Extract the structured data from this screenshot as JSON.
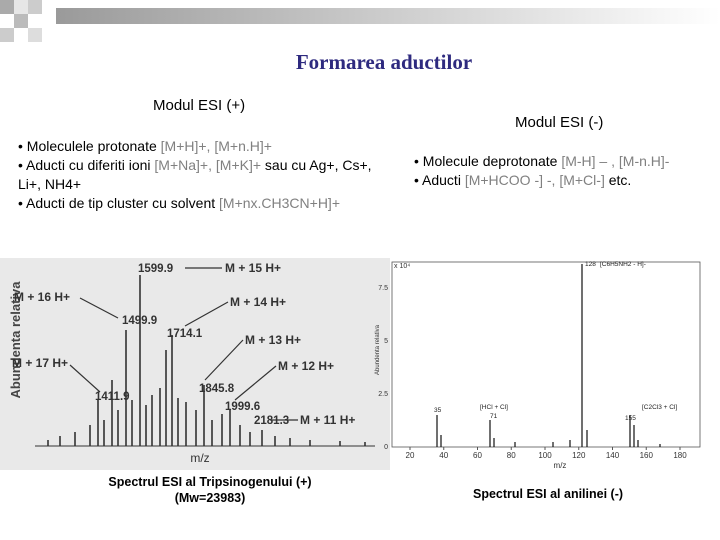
{
  "header": {
    "title": "Formarea aductilor"
  },
  "left": {
    "heading": "Modul ESI (+)",
    "bullets": [
      [
        {
          "text": "• Moleculele protonate ",
          "color": "#000000"
        },
        {
          "text": "[M+H]+, [M+n.H]+",
          "color": "#808080"
        }
      ],
      [
        {
          "text": "• Aducti cu diferiti ioni ",
          "color": "#000000"
        },
        {
          "text": "[M+Na]+, [M+K]+",
          "color": "#808080"
        },
        {
          "text": " sau cu Ag+, Cs+, Li+, NH4+",
          "color": "#000000"
        }
      ],
      [
        {
          "text": "• Aducti de tip cluster cu solvent ",
          "color": "#000000"
        },
        {
          "text": "[M+nx.CH3CN+H]+",
          "color": "#808080"
        }
      ]
    ],
    "spectrum": {
      "y_label": "Abundenta relativa",
      "x_label": "m/z",
      "ion_labels": [
        "M + 15 H+",
        "M + 16 H+",
        "M + 14 H+",
        "M + 13 H+",
        "M + 17 H+",
        "M + 12 H+",
        "M + 11 H+"
      ],
      "peak_labels": [
        "1599.9",
        "1499.9",
        "1714.1",
        "1845.8",
        "1411.9",
        "1999.6",
        "2181.3"
      ]
    },
    "caption": [
      "Spectrul ESI al Tripsinogenului (+)",
      "(Mw=23983)"
    ]
  },
  "right": {
    "heading": "Modul ESI (-)",
    "bullets": [
      [
        {
          "text": "• Molecule deprotonate ",
          "color": "#000000"
        },
        {
          "text": "[M-H] – , [M-n.H]-",
          "color": "#808080"
        }
      ],
      [
        {
          "text": "• Aducti ",
          "color": "#000000"
        },
        {
          "text": "[M+HCOO -] -, [M+Cl-]",
          "color": "#808080"
        },
        {
          "text": " etc.",
          "color": "#000000"
        }
      ]
    ],
    "spectrum": {
      "y_label": "Abundenta relativa",
      "x_label": "m/z",
      "scale_label": "x 10⁴",
      "yticks": [
        "7.5",
        "5",
        "2.5",
        "0"
      ],
      "xticks": [
        "20",
        "40",
        "60",
        "80",
        "100",
        "120",
        "140",
        "160",
        "180"
      ],
      "peak_labels": [
        "128",
        "[C6H5NH2 - H]-",
        "35",
        "[HCl + Cl]",
        "71",
        "[C2Cl3 + Cl]",
        "155"
      ]
    },
    "caption": [
      "Spectrul ESI al anilinei (-)"
    ]
  }
}
